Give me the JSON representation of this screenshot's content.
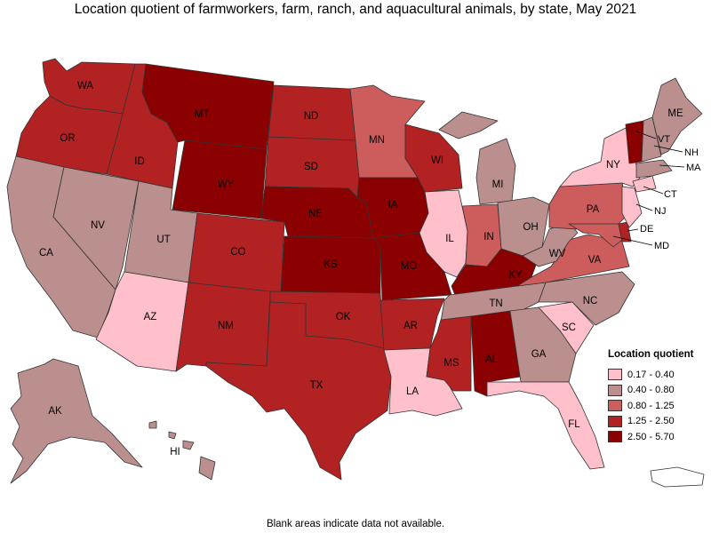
{
  "title": "Location quotient of farmworkers, farm, ranch, and aquacultural animals, by state, May 2021",
  "footnote": "Blank areas indicate data not available.",
  "legend": {
    "title": "Location quotient",
    "classes": [
      {
        "label": "0.17 - 0.40",
        "color": "#ffc0cb"
      },
      {
        "label": "0.40 - 0.80",
        "color": "#bc8f8f"
      },
      {
        "label": "0.80 - 1.25",
        "color": "#cd5c5c"
      },
      {
        "label": "1.25 - 2.50",
        "color": "#b22222"
      },
      {
        "label": "2.50 - 5.70",
        "color": "#8b0000"
      }
    ]
  },
  "states": {
    "WA": {
      "label": "WA",
      "class": 3
    },
    "OR": {
      "label": "OR",
      "class": 3
    },
    "ID": {
      "label": "ID",
      "class": 3
    },
    "CA": {
      "label": "CA",
      "class": 1
    },
    "NV": {
      "label": "NV",
      "class": 1
    },
    "UT": {
      "label": "UT",
      "class": 1
    },
    "AZ": {
      "label": "AZ",
      "class": 0
    },
    "MT": {
      "label": "MT",
      "class": 4
    },
    "WY": {
      "label": "WY",
      "class": 4
    },
    "CO": {
      "label": "CO",
      "class": 3
    },
    "NM": {
      "label": "NM",
      "class": 3
    },
    "ND": {
      "label": "ND",
      "class": 3
    },
    "SD": {
      "label": "SD",
      "class": 3
    },
    "NE": {
      "label": "NE",
      "class": 4
    },
    "KS": {
      "label": "KS",
      "class": 4
    },
    "OK": {
      "label": "OK",
      "class": 3
    },
    "TX": {
      "label": "TX",
      "class": 3
    },
    "MN": {
      "label": "MN",
      "class": 2
    },
    "IA": {
      "label": "IA",
      "class": 4
    },
    "MO": {
      "label": "MO",
      "class": 4
    },
    "AR": {
      "label": "AR",
      "class": 3
    },
    "LA": {
      "label": "LA",
      "class": 0
    },
    "WI": {
      "label": "WI",
      "class": 3
    },
    "IL": {
      "label": "IL",
      "class": 0
    },
    "MI": {
      "label": "MI",
      "class": 1
    },
    "IN": {
      "label": "IN",
      "class": 2
    },
    "OH": {
      "label": "OH",
      "class": 1
    },
    "KY": {
      "label": "KY",
      "class": 4
    },
    "TN": {
      "label": "TN",
      "class": 1
    },
    "MS": {
      "label": "MS",
      "class": 3
    },
    "AL": {
      "label": "AL",
      "class": 4
    },
    "GA": {
      "label": "GA",
      "class": 1
    },
    "FL": {
      "label": "FL",
      "class": 0
    },
    "SC": {
      "label": "SC",
      "class": 0
    },
    "NC": {
      "label": "NC",
      "class": 1
    },
    "VA": {
      "label": "VA",
      "class": 2
    },
    "WV": {
      "label": "WV",
      "class": 1
    },
    "PA": {
      "label": "PA",
      "class": 2
    },
    "NY": {
      "label": "NY",
      "class": 0
    },
    "ME": {
      "label": "ME",
      "class": 1
    },
    "VT": {
      "label": "VT",
      "class": 4
    },
    "NH": {
      "label": "NH",
      "class": 1
    },
    "MA": {
      "label": "MA",
      "class": 1
    },
    "CT": {
      "label": "CT",
      "class": 0
    },
    "NJ": {
      "label": "NJ",
      "class": 0
    },
    "DE": {
      "label": "DE",
      "class": 3
    },
    "MD": {
      "label": "MD",
      "class": 2
    },
    "AK": {
      "label": "AK",
      "class": 1
    },
    "HI": {
      "label": "HI",
      "class": 1
    }
  }
}
